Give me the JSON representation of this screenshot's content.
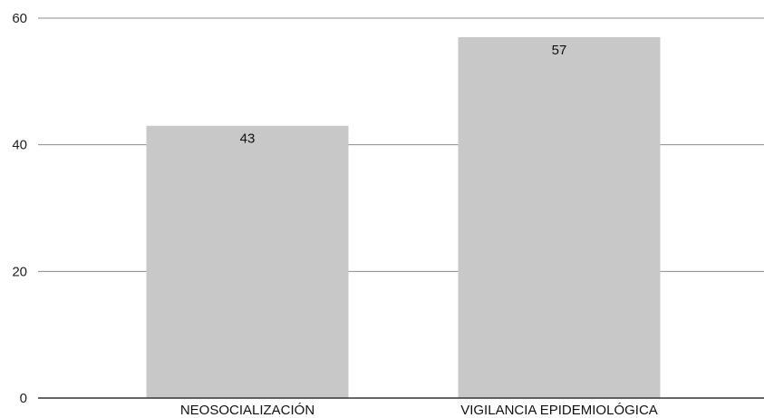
{
  "chart_data": {
    "type": "bar",
    "categories": [
      "NEOSOCIALIZACIÓN",
      "VIGILANCIA EPIDEMIOLÓGICA"
    ],
    "values": [
      43,
      57
    ],
    "data_labels": [
      "43",
      "57"
    ],
    "yticks": [
      0,
      20,
      40,
      60
    ],
    "ylim": [
      0,
      60
    ],
    "title": "",
    "xlabel": "",
    "ylabel": "",
    "grid": true,
    "legend": "none",
    "colors": {
      "bar": "#c8c8c8",
      "grid": "#8c8c8c",
      "axis": "#333333"
    }
  }
}
